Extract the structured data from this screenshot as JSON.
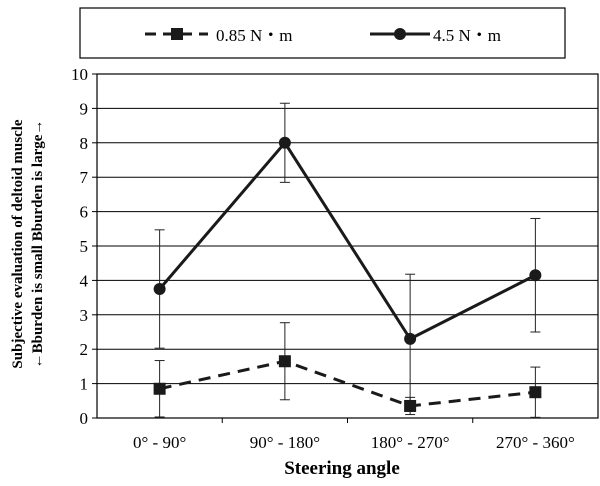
{
  "chart_data": {
    "type": "line",
    "xlabel": "Steering angle",
    "ylabel_lines": [
      "Subjective evaluation of deltoid muscle",
      "←Bburden is small Bburden is large→"
    ],
    "categories": [
      "0° - 90°",
      "90° - 180°",
      "180° - 270°",
      "270° - 360°"
    ],
    "ylim": [
      0,
      10
    ],
    "yticks": [
      "0",
      "1",
      "2",
      "3",
      "4",
      "5",
      "6",
      "7",
      "8",
      "9",
      "10"
    ],
    "grid": true,
    "legend_position": "top",
    "series": [
      {
        "name": "0.85 N・m",
        "values": [
          0.85,
          1.65,
          0.35,
          0.75
        ],
        "error": [
          0.82,
          1.12,
          0.25,
          0.73
        ],
        "marker": "square",
        "line_style": "dashed",
        "color": "#1a1a1a"
      },
      {
        "name": "4.5 N・m",
        "values": [
          3.75,
          8.0,
          2.3,
          4.15
        ],
        "error": [
          1.72,
          1.15,
          1.88,
          1.65
        ],
        "marker": "circle",
        "line_style": "solid",
        "color": "#1a1a1a"
      }
    ]
  }
}
